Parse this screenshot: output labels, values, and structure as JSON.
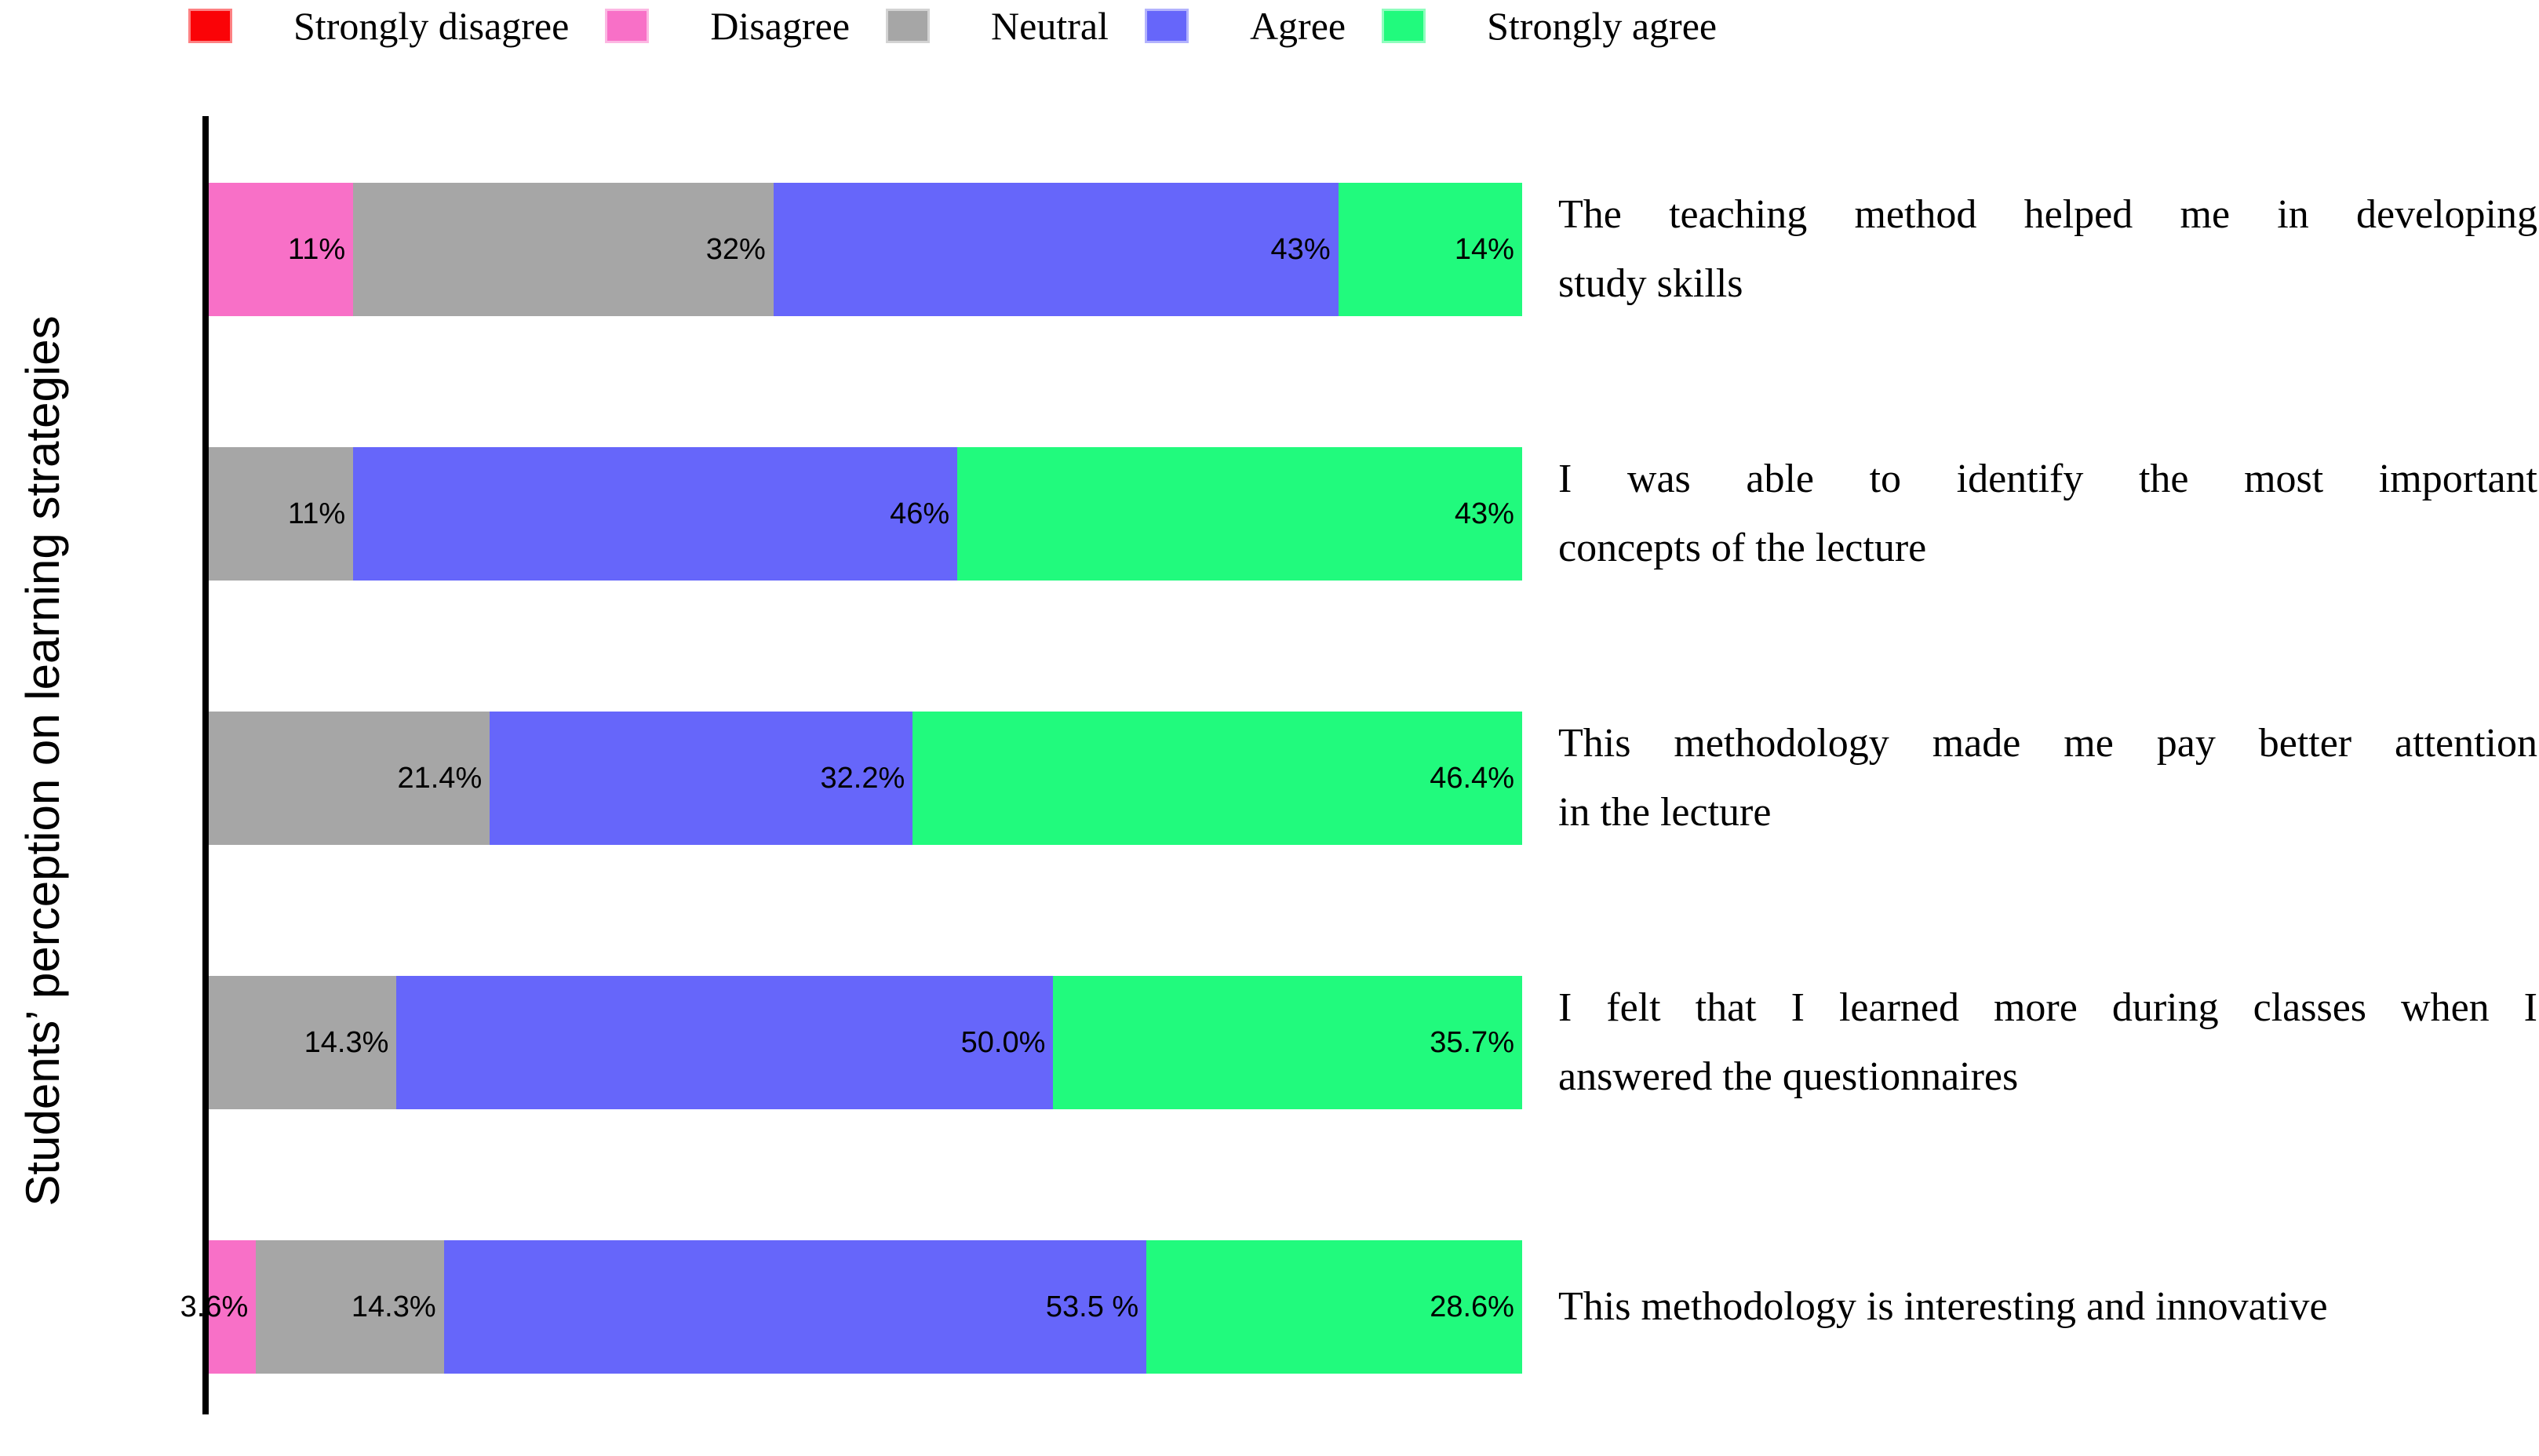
{
  "figure": {
    "y_axis_title": "Students’ perception on learning strategies"
  },
  "legend": {
    "items": [
      {
        "label": "Strongly disagree",
        "color": "#FA0307"
      },
      {
        "label": "Disagree",
        "color": "#F870C7"
      },
      {
        "label": "Neutral",
        "color": "#A6A6A6"
      },
      {
        "label": "Agree",
        "color": "#6666FA"
      },
      {
        "label": "Strongly agree",
        "color": "#21FA7D"
      }
    ]
  },
  "rows": [
    {
      "statement_lines": [
        "The teaching method helped me in developing",
        "study skills"
      ],
      "segments": [
        {
          "series": "Disagree",
          "value": 11,
          "label": "11%",
          "color": "#F870C7"
        },
        {
          "series": "Neutral",
          "value": 32,
          "label": "32%",
          "color": "#A6A6A6"
        },
        {
          "series": "Agree",
          "value": 43,
          "label": "43%",
          "color": "#6666FA"
        },
        {
          "series": "Strongly agree",
          "value": 14,
          "label": "14%",
          "color": "#21FA7D"
        }
      ]
    },
    {
      "statement_lines": [
        "I was able to identify the most important",
        "concepts of the lecture"
      ],
      "segments": [
        {
          "series": "Neutral",
          "value": 11,
          "label": "11%",
          "color": "#A6A6A6"
        },
        {
          "series": "Agree",
          "value": 46,
          "label": "46%",
          "color": "#6666FA"
        },
        {
          "series": "Strongly agree",
          "value": 43,
          "label": "43%",
          "color": "#21FA7D"
        }
      ]
    },
    {
      "statement_lines": [
        "This methodology made me pay better attention",
        "in the lecture"
      ],
      "segments": [
        {
          "series": "Neutral",
          "value": 21.4,
          "label": "21.4%",
          "color": "#A6A6A6"
        },
        {
          "series": "Agree",
          "value": 32.2,
          "label": "32.2%",
          "color": "#6666FA"
        },
        {
          "series": "Strongly agree",
          "value": 46.4,
          "label": "46.4%",
          "color": "#21FA7D"
        }
      ]
    },
    {
      "statement_lines": [
        "I felt that I learned more during classes when I",
        "answered the questionnaires"
      ],
      "segments": [
        {
          "series": "Neutral",
          "value": 14.3,
          "label": "14.3%",
          "color": "#A6A6A6"
        },
        {
          "series": "Agree",
          "value": 50,
          "label": "50.0%",
          "color": "#6666FA"
        },
        {
          "series": "Strongly agree",
          "value": 35.7,
          "label": "35.7%",
          "color": "#21FA7D"
        }
      ]
    },
    {
      "statement_lines": [
        "This methodology is interesting and innovative"
      ],
      "segments": [
        {
          "series": "Disagree",
          "value": 3.6,
          "label": "3.6%",
          "color": "#F870C7"
        },
        {
          "series": "Neutral",
          "value": 14.3,
          "label": "14.3%",
          "color": "#A6A6A6"
        },
        {
          "series": "Agree",
          "value": 53.5,
          "label": "53.5 %",
          "color": "#6666FA"
        },
        {
          "series": "Strongly agree",
          "value": 28.6,
          "label": "28.6%",
          "color": "#21FA7D"
        }
      ]
    }
  ],
  "chart_data": {
    "type": "bar",
    "orientation": "horizontal",
    "stacked": true,
    "title": "",
    "xlabel": "",
    "ylabel": "Students’ perception on learning strategies",
    "xlim": [
      0,
      100
    ],
    "unit": "percent",
    "grid": false,
    "legend_position": "top",
    "categories": [
      "The teaching method helped me in developing study skills",
      "I was able to identify the most important concepts of the lecture",
      "This methodology made me pay better attention in the lecture",
      "I felt that I learned more during classes when I answered the questionnaires",
      "This methodology is interesting and innovative"
    ],
    "series": [
      {
        "name": "Strongly disagree",
        "color": "#FA0307",
        "values": [
          0,
          0,
          0,
          0,
          0
        ]
      },
      {
        "name": "Disagree",
        "color": "#F870C7",
        "values": [
          11,
          0,
          0,
          0,
          3.6
        ]
      },
      {
        "name": "Neutral",
        "color": "#A6A6A6",
        "values": [
          32,
          11,
          21.4,
          14.3,
          14.3
        ]
      },
      {
        "name": "Agree",
        "color": "#6666FA",
        "values": [
          43,
          46,
          32.2,
          50.0,
          53.5
        ]
      },
      {
        "name": "Strongly agree",
        "color": "#21FA7D",
        "values": [
          14,
          43,
          46.4,
          35.7,
          28.6
        ]
      }
    ]
  }
}
